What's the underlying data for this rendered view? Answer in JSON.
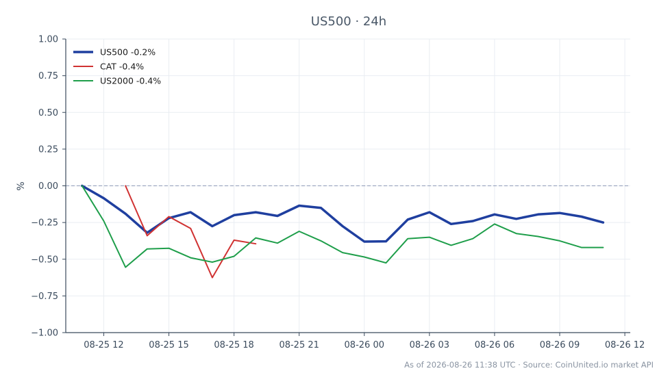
{
  "chart_data": {
    "type": "line",
    "title": "US500 · 24h",
    "ylabel": "%",
    "xlabel": "",
    "ylim": [
      -1.0,
      1.0
    ],
    "yticks": [
      1.0,
      0.75,
      0.5,
      0.25,
      0.0,
      -0.25,
      -0.5,
      -0.75,
      -1.0
    ],
    "ytick_labels": [
      "1.00",
      "0.75",
      "0.50",
      "0.25",
      "0.00",
      "−0.25",
      "−0.50",
      "−0.75",
      "−1.00"
    ],
    "xlim": [
      "2026-08-25 10:15",
      "2026-08-26 12:15"
    ],
    "xticks": [
      "2026-08-25 12:00",
      "2026-08-25 15:00",
      "2026-08-25 18:00",
      "2026-08-25 21:00",
      "2026-08-26 00:00",
      "2026-08-26 03:00",
      "2026-08-26 06:00",
      "2026-08-26 09:00",
      "2026-08-26 12:00"
    ],
    "xtick_labels": [
      "08-25 12",
      "08-25 15",
      "08-25 18",
      "08-25 21",
      "08-26 00",
      "08-26 03",
      "08-26 06",
      "08-26 09",
      "08-26 12"
    ],
    "grid": true,
    "legend_position": "top-left",
    "reference_line": 0.0,
    "series": [
      {
        "name": "US500 -0.2%",
        "color": "#1f3f9f",
        "x": [
          "2026-08-25 11:00",
          "2026-08-25 12:00",
          "2026-08-25 13:00",
          "2026-08-25 14:00",
          "2026-08-25 15:00",
          "2026-08-25 16:00",
          "2026-08-25 17:00",
          "2026-08-25 18:00",
          "2026-08-25 19:00",
          "2026-08-25 20:00",
          "2026-08-25 21:00",
          "2026-08-25 22:00",
          "2026-08-25 23:00",
          "2026-08-26 00:00",
          "2026-08-26 01:00",
          "2026-08-26 02:00",
          "2026-08-26 03:00",
          "2026-08-26 04:00",
          "2026-08-26 05:00",
          "2026-08-26 06:00",
          "2026-08-26 07:00",
          "2026-08-26 08:00",
          "2026-08-26 09:00",
          "2026-08-26 10:00",
          "2026-08-26 11:00"
        ],
        "values": [
          0.0,
          -0.085,
          -0.19,
          -0.32,
          -0.22,
          -0.18,
          -0.275,
          -0.2,
          -0.18,
          -0.205,
          -0.135,
          -0.15,
          -0.275,
          -0.38,
          -0.378,
          -0.23,
          -0.18,
          -0.26,
          -0.24,
          -0.195,
          -0.225,
          -0.195,
          -0.185,
          -0.21,
          -0.25
        ]
      },
      {
        "name": "CAT -0.4%",
        "color": "#d03232",
        "x": [
          "2026-08-25 13:00",
          "2026-08-25 14:00",
          "2026-08-25 15:00",
          "2026-08-25 16:00",
          "2026-08-25 17:00",
          "2026-08-25 18:00",
          "2026-08-25 19:00"
        ],
        "values": [
          0.0,
          -0.34,
          -0.21,
          -0.29,
          -0.625,
          -0.37,
          -0.395
        ]
      },
      {
        "name": "US2000 -0.4%",
        "color": "#1e9e4a",
        "x": [
          "2026-08-25 11:00",
          "2026-08-25 12:00",
          "2026-08-25 13:00",
          "2026-08-25 14:00",
          "2026-08-25 15:00",
          "2026-08-25 16:00",
          "2026-08-25 17:00",
          "2026-08-25 18:00",
          "2026-08-25 19:00",
          "2026-08-25 20:00",
          "2026-08-25 21:00",
          "2026-08-25 22:00",
          "2026-08-25 23:00",
          "2026-08-26 00:00",
          "2026-08-26 01:00",
          "2026-08-26 02:00",
          "2026-08-26 03:00",
          "2026-08-26 04:00",
          "2026-08-26 05:00",
          "2026-08-26 06:00",
          "2026-08-26 07:00",
          "2026-08-26 08:00",
          "2026-08-26 09:00",
          "2026-08-26 10:00",
          "2026-08-26 11:00"
        ],
        "values": [
          0.0,
          -0.24,
          -0.555,
          -0.43,
          -0.425,
          -0.49,
          -0.52,
          -0.48,
          -0.355,
          -0.39,
          -0.31,
          -0.375,
          -0.455,
          -0.485,
          -0.525,
          -0.36,
          -0.35,
          -0.405,
          -0.36,
          -0.26,
          -0.325,
          -0.345,
          -0.375,
          -0.42,
          -0.42
        ]
      }
    ]
  },
  "footer": {
    "source_text": "As of 2026-08-26 11:38 UTC · Source: CoinUnited.io market API"
  }
}
